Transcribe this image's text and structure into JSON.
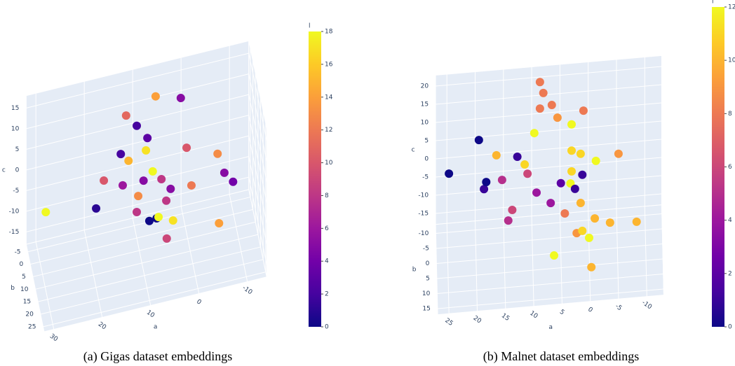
{
  "chart_data": [
    {
      "type": "scatter3d",
      "caption": "(a) Gigas dataset embeddings",
      "xlabel": "a",
      "ylabel": "b",
      "zlabel": "c",
      "colorbar_title": "l",
      "xlim": [
        -14,
        32
      ],
      "xticks": [
        -10,
        0,
        10,
        20,
        30
      ],
      "ylim": [
        -8,
        27
      ],
      "yticks": [
        -5,
        0,
        5,
        10,
        15,
        20,
        25
      ],
      "zlim": [
        -18,
        18
      ],
      "zticks": [
        -15,
        -10,
        -5,
        0,
        5,
        10,
        15
      ],
      "clim": [
        0,
        18
      ],
      "cticks": [
        0,
        2,
        4,
        6,
        8,
        10,
        12,
        14,
        16,
        18
      ],
      "colorscale": [
        "#0d0887",
        "#46039f",
        "#7201a8",
        "#9c179e",
        "#bd3786",
        "#d8576b",
        "#ed7953",
        "#fb9f3a",
        "#fdca26",
        "#f0f921"
      ],
      "x": [
        6.1,
        0.9,
        12.2,
        10.0,
        7.8,
        13.3,
        8.1,
        11.7,
        -0.3,
        -6.7,
        6.7,
        8.6,
        4.9,
        12.9,
        16.8,
        3.0,
        -1.3,
        -8.1,
        -9.9,
        9.7,
        3.9,
        18.4,
        28.8,
        10.0,
        5.5,
        5.9,
        7.4,
        2.5,
        -7.0,
        3.8
      ],
      "y": [
        0,
        0,
        0,
        0,
        0,
        0,
        0,
        0,
        0,
        0,
        0,
        0,
        0,
        0,
        0,
        0,
        0,
        0,
        0,
        0,
        0,
        0,
        0,
        0,
        0,
        0,
        0,
        0,
        0,
        0
      ],
      "z": [
        15.2,
        13.3,
        12.3,
        9.2,
        5.6,
        3.3,
        2.7,
        1.2,
        0.9,
        -2.4,
        -2.8,
        -4.5,
        -5.2,
        -4.4,
        -2.1,
        -8.1,
        -8.5,
        -7.4,
        -10.1,
        -7.9,
        -10.7,
        -8.4,
        -6.3,
        -11.7,
        -14.2,
        -14.4,
        -14.6,
        -15.9,
        -19.3,
        -19.9
      ],
      "values": [
        14,
        5,
        11,
        2,
        3,
        2,
        17,
        15,
        10,
        13,
        18,
        5,
        8,
        6,
        10,
        5,
        12,
        5,
        4,
        13,
        8,
        1,
        18,
        8,
        18,
        0,
        0,
        17,
        14,
        9
      ]
    },
    {
      "type": "scatter3d",
      "caption": "(b) Malnet dataset embeddings",
      "xlabel": "a",
      "ylabel": "b",
      "zlabel": "c",
      "colorbar_title": "l",
      "xlim": [
        -13,
        27
      ],
      "xticks": [
        -10,
        -5,
        0,
        5,
        10,
        15,
        20,
        25
      ],
      "ylim": [
        -13,
        17
      ],
      "yticks": [
        -10,
        -5,
        0,
        5,
        10,
        15
      ],
      "zlim": [
        -18,
        23
      ],
      "zticks": [
        -15,
        -10,
        -5,
        0,
        5,
        10,
        15,
        20
      ],
      "clim": [
        0,
        12
      ],
      "cticks": [
        0,
        2,
        4,
        6,
        8,
        10,
        12
      ],
      "colorscale": [
        "#0d0887",
        "#46039f",
        "#7201a8",
        "#9c179e",
        "#bd3786",
        "#d8576b",
        "#ed7953",
        "#fb9f3a",
        "#fdca26",
        "#f0f921"
      ],
      "x": [
        8.7,
        8.1,
        6.6,
        8.7,
        5.6,
        1.0,
        3.1,
        9.7,
        19.5,
        3.1,
        1.5,
        -1.2,
        -5.2,
        16.4,
        12.7,
        11.4,
        10.9,
        24.8,
        3.1,
        1.2,
        18.2,
        15.4,
        5.0,
        3.3,
        2.5,
        18.6,
        9.3,
        6.8,
        1.5,
        13.6,
        14.3,
        4.3,
        -1.0,
        -3.7,
        -8.4,
        1.2,
        2.2,
        0,
        6.2,
        -0.4
      ],
      "y": [
        0,
        0,
        0,
        0,
        0,
        0,
        0,
        0,
        0,
        0,
        0,
        0,
        0,
        0,
        0,
        0,
        0,
        0,
        0,
        0,
        0,
        0,
        0,
        0,
        0,
        0,
        0,
        0,
        0,
        0,
        0,
        0,
        0,
        0,
        0,
        0,
        0,
        0,
        0,
        0
      ],
      "z": [
        29.4,
        26.3,
        22.8,
        22.1,
        19.2,
        20.5,
        17.0,
        15.5,
        14.9,
        9.8,
        8.7,
        6.4,
        7.8,
        10.3,
        9.4,
        7.1,
        4.5,
        6.4,
        4.1,
        2.9,
        3.2,
        3.4,
        1.1,
        0.8,
        -0.8,
        1.3,
        -0.9,
        -4.1,
        -4.8,
        -5.1,
        -7.9,
        -7.3,
        -9.4,
        -10.9,
        -11.3,
        -12.5,
        -13.0,
        -14.6,
        -18.6,
        -22.7
      ],
      "values": [
        8,
        8,
        8,
        8,
        9,
        8,
        12,
        12,
        0,
        11,
        11,
        12,
        9,
        10,
        1,
        11,
        6,
        0,
        11,
        1,
        0,
        5,
        2,
        12,
        1,
        1,
        4,
        4,
        10,
        6,
        5,
        8,
        10,
        10,
        10,
        11,
        9,
        12,
        12,
        10
      ]
    }
  ]
}
